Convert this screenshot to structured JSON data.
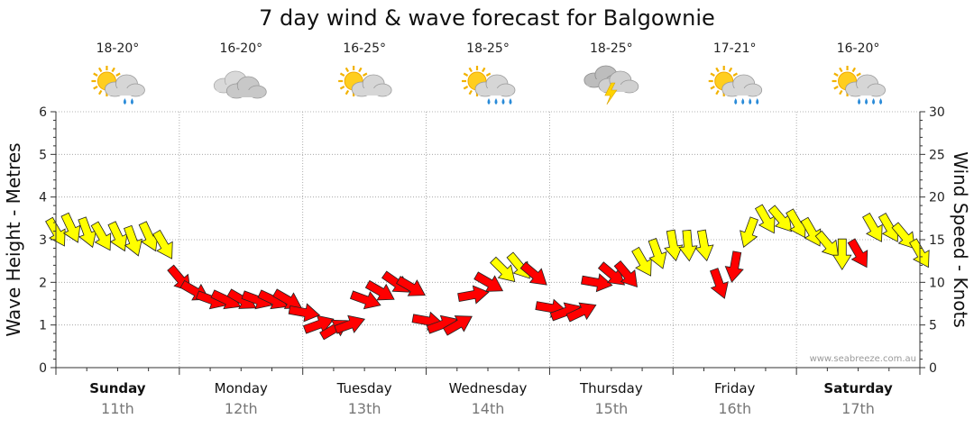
{
  "chart_data": {
    "type": "line",
    "title": "7 day wind & wave forecast for Balgownie",
    "ylabel_left": "Wave Height - Metres",
    "ylabel_right": "Wind Speed - Knots",
    "ylim_left": [
      0,
      6
    ],
    "ylim_right": [
      0,
      30
    ],
    "left_ticks": [
      "0",
      "1",
      "2",
      "3",
      "4",
      "5",
      "6"
    ],
    "right_ticks": [
      "0",
      "5",
      "10",
      "15",
      "20",
      "25",
      "30"
    ],
    "watermark": "www.seabreeze.com.au",
    "days": [
      {
        "day": "Sunday",
        "date": "11th",
        "temp": "18-20°",
        "icon": "sun-cloud-shower-icon",
        "bold": true
      },
      {
        "day": "Monday",
        "date": "12th",
        "temp": "16-20°",
        "icon": "cloud-icon",
        "bold": false
      },
      {
        "day": "Tuesday",
        "date": "13th",
        "temp": "16-25°",
        "icon": "sun-cloud-icon",
        "bold": false
      },
      {
        "day": "Wednesday",
        "date": "14th",
        "temp": "18-25°",
        "icon": "sun-cloud-rain-icon",
        "bold": false
      },
      {
        "day": "Thursday",
        "date": "15th",
        "temp": "18-25°",
        "icon": "storm-icon",
        "bold": false
      },
      {
        "day": "Friday",
        "date": "16th",
        "temp": "17-21°",
        "icon": "sun-cloud-rain-icon",
        "bold": false
      },
      {
        "day": "Saturday",
        "date": "17th",
        "temp": "16-20°",
        "icon": "sun-cloud-rain-icon",
        "bold": true
      }
    ],
    "wind_series": {
      "name": "Wind Speed (knots)",
      "x_days": [
        0.0,
        0.12,
        0.25,
        0.37,
        0.5,
        0.62,
        0.75,
        0.87,
        1.0,
        1.12,
        1.25,
        1.37,
        1.5,
        1.62,
        1.75,
        1.87,
        2.0,
        2.12,
        2.25,
        2.37,
        2.5,
        2.62,
        2.75,
        2.87,
        3.0,
        3.12,
        3.25,
        3.37,
        3.5,
        3.62,
        3.75,
        3.87,
        4.0,
        4.12,
        4.25,
        4.37,
        4.5,
        4.62,
        4.75,
        4.87,
        5.0,
        5.12,
        5.25,
        5.37,
        5.5,
        5.62,
        5.75,
        5.87,
        6.0,
        6.12,
        6.25,
        6.37,
        6.5,
        6.62,
        6.75,
        6.87,
        7.0
      ],
      "values": [
        16,
        16.5,
        16,
        15.5,
        15.5,
        15,
        15.5,
        14.5,
        10.5,
        9,
        8,
        8,
        8,
        8,
        8,
        8,
        6.5,
        5,
        4.5,
        5,
        8,
        9,
        10,
        9.5,
        5.5,
        5,
        5,
        8.5,
        10,
        11.5,
        12,
        11,
        7,
        6.5,
        6.5,
        10,
        11,
        11,
        12.5,
        13.5,
        14.5,
        14.5,
        14.5,
        10,
        12,
        16,
        17.5,
        17.5,
        17,
        16,
        14.5,
        13.5,
        13.5,
        16.5,
        16.5,
        15.5,
        13.5
      ],
      "directions_deg": [
        330,
        335,
        340,
        330,
        335,
        340,
        335,
        330,
        320,
        300,
        290,
        295,
        300,
        290,
        295,
        300,
        280,
        250,
        240,
        250,
        290,
        300,
        305,
        300,
        280,
        250,
        240,
        260,
        300,
        315,
        320,
        310,
        280,
        250,
        245,
        280,
        310,
        320,
        330,
        340,
        350,
        355,
        350,
        340,
        10,
        20,
        330,
        320,
        330,
        330,
        320,
        0,
        330,
        330,
        330,
        320,
        330
      ],
      "categories": [
        "yellow",
        "yellow",
        "yellow",
        "yellow",
        "yellow",
        "yellow",
        "yellow",
        "yellow",
        "red",
        "red",
        "red",
        "red",
        "red",
        "red",
        "red",
        "red",
        "red",
        "red",
        "red",
        "red",
        "red",
        "red",
        "red",
        "red",
        "red",
        "red",
        "red",
        "red",
        "red",
        "yellow",
        "yellow",
        "red",
        "red",
        "red",
        "red",
        "red",
        "red",
        "red",
        "yellow",
        "yellow",
        "yellow",
        "yellow",
        "yellow",
        "red",
        "red",
        "yellow",
        "yellow",
        "yellow",
        "yellow",
        "yellow",
        "yellow",
        "yellow",
        "red",
        "yellow",
        "yellow",
        "yellow",
        "yellow"
      ]
    },
    "colors": {
      "yellow": "#ffff00",
      "red": "#ff0000",
      "outline": "#222222",
      "grid": "#9a9a9a"
    }
  }
}
